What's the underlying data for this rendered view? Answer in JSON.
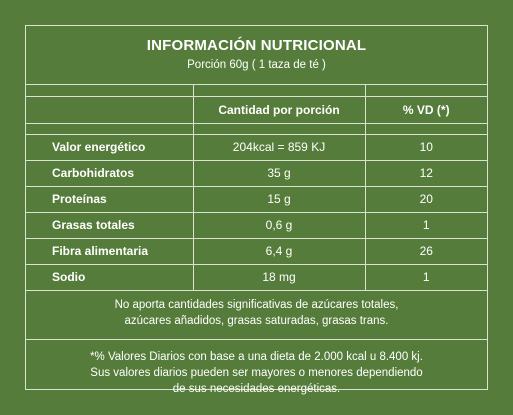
{
  "header": {
    "title": "INFORMACIÓN NUTRICIONAL",
    "subtitle": "Porción 60g ( 1 taza de té )"
  },
  "table": {
    "columns": [
      "",
      "Cantidad por porción",
      "% VD (*)"
    ],
    "rows": [
      {
        "name": "Valor energético",
        "qty": "204kcal = 859 KJ",
        "vd": "10"
      },
      {
        "name": "Carbohidratos",
        "qty": "35 g",
        "vd": "12"
      },
      {
        "name": "Proteínas",
        "qty": "15 g",
        "vd": "20"
      },
      {
        "name": "Grasas totales",
        "qty": "0,6 g",
        "vd": "1"
      },
      {
        "name": "Fibra alimentaria",
        "qty": "6,4 g",
        "vd": "26"
      },
      {
        "name": "Sodio",
        "qty": "18 mg",
        "vd": "1"
      }
    ]
  },
  "note": {
    "line1": "No aporta cantidades significativas de azúcares totales,",
    "line2": "azúcares añadidos, grasas saturadas, grasas trans."
  },
  "footnote": {
    "line1": "*% Valores Diarios con base a una dieta de 2.000 kcal u 8.400 kj.",
    "line2": "Sus valores diarios pueden ser mayores o menores dependiendo",
    "line3": "de sus necesidades energéticas."
  },
  "colors": {
    "background": "#557c3a",
    "lines": "#d9e3cf",
    "text": "#ffffff"
  }
}
